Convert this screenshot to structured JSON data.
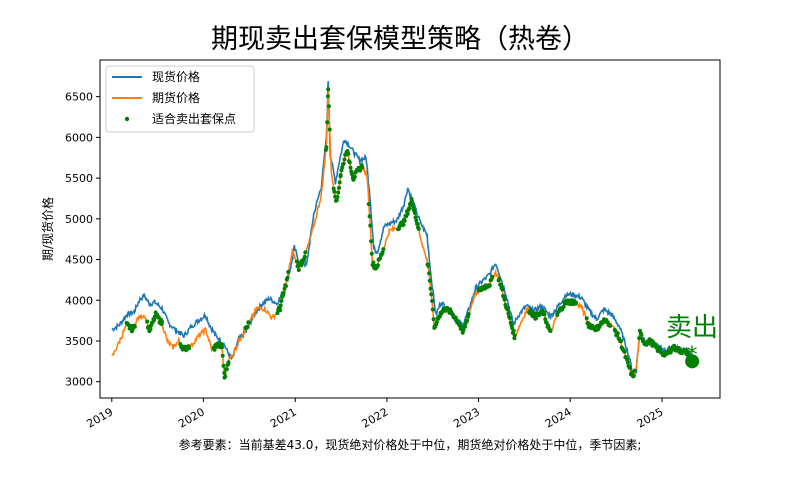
{
  "chart_data": {
    "type": "line",
    "title": "期现卖出套保模型策略（热卷）",
    "ylabel": "期/现货价格",
    "xlabel": "",
    "ylim": [
      2800,
      6950
    ],
    "xlim": [
      "2018-11-15",
      "2025-08-20"
    ],
    "yticks": [
      3000,
      3500,
      4000,
      4500,
      5000,
      5500,
      6000,
      6500
    ],
    "xticks": [
      "2019",
      "2020",
      "2021",
      "2022",
      "2023",
      "2024",
      "2025"
    ],
    "grid": false,
    "legend_position": "top-left",
    "series": [
      {
        "name": "现货价格",
        "color": "#1f77b4",
        "points": [
          [
            "2019-01-02",
            3640
          ],
          [
            "2019-02-01",
            3700
          ],
          [
            "2019-03-01",
            3820
          ],
          [
            "2019-04-01",
            3860
          ],
          [
            "2019-04-20",
            4000
          ],
          [
            "2019-05-10",
            4060
          ],
          [
            "2019-06-01",
            3950
          ],
          [
            "2019-06-20",
            3980
          ],
          [
            "2019-07-20",
            3900
          ],
          [
            "2019-08-15",
            3720
          ],
          [
            "2019-09-15",
            3630
          ],
          [
            "2019-10-15",
            3560
          ],
          [
            "2019-11-15",
            3680
          ],
          [
            "2019-12-15",
            3760
          ],
          [
            "2020-01-10",
            3820
          ],
          [
            "2020-01-25",
            3700
          ],
          [
            "2020-02-20",
            3560
          ],
          [
            "2020-03-20",
            3480
          ],
          [
            "2020-04-10",
            3340
          ],
          [
            "2020-04-25",
            3270
          ],
          [
            "2020-05-20",
            3520
          ],
          [
            "2020-06-20",
            3620
          ],
          [
            "2020-07-20",
            3820
          ],
          [
            "2020-08-20",
            3950
          ],
          [
            "2020-09-20",
            4020
          ],
          [
            "2020-10-20",
            3960
          ],
          [
            "2020-11-20",
            4140
          ],
          [
            "2020-12-15",
            4420
          ],
          [
            "2020-12-28",
            4650
          ],
          [
            "2021-01-15",
            4480
          ],
          [
            "2021-02-15",
            4430
          ],
          [
            "2021-03-15",
            5050
          ],
          [
            "2021-04-15",
            5400
          ],
          [
            "2021-05-05",
            6000
          ],
          [
            "2021-05-12",
            6700
          ],
          [
            "2021-05-20",
            5800
          ],
          [
            "2021-06-10",
            5450
          ],
          [
            "2021-06-25",
            5700
          ],
          [
            "2021-07-15",
            5980
          ],
          [
            "2021-08-05",
            5900
          ],
          [
            "2021-08-25",
            5800
          ],
          [
            "2021-09-15",
            5720
          ],
          [
            "2021-10-10",
            5750
          ],
          [
            "2021-10-25",
            5300
          ],
          [
            "2021-11-10",
            4620
          ],
          [
            "2021-11-25",
            4600
          ],
          [
            "2021-12-20",
            4900
          ],
          [
            "2022-01-15",
            4950
          ],
          [
            "2022-02-10",
            4980
          ],
          [
            "2022-03-10",
            5180
          ],
          [
            "2022-03-25",
            5380
          ],
          [
            "2022-04-15",
            5200
          ],
          [
            "2022-05-15",
            4950
          ],
          [
            "2022-06-10",
            4800
          ],
          [
            "2022-06-25",
            4320
          ],
          [
            "2022-07-15",
            3820
          ],
          [
            "2022-08-05",
            3980
          ],
          [
            "2022-09-10",
            3850
          ],
          [
            "2022-10-10",
            3730
          ],
          [
            "2022-11-01",
            3700
          ],
          [
            "2022-11-25",
            3900
          ],
          [
            "2022-12-20",
            4150
          ],
          [
            "2023-01-15",
            4230
          ],
          [
            "2023-02-15",
            4320
          ],
          [
            "2023-03-10",
            4460
          ],
          [
            "2023-03-25",
            4330
          ],
          [
            "2023-04-20",
            4080
          ],
          [
            "2023-05-20",
            3700
          ],
          [
            "2023-06-10",
            3820
          ],
          [
            "2023-07-10",
            3930
          ],
          [
            "2023-08-10",
            3870
          ],
          [
            "2023-09-10",
            3930
          ],
          [
            "2023-10-15",
            3800
          ],
          [
            "2023-11-15",
            3930
          ],
          [
            "2023-12-15",
            4070
          ],
          [
            "2024-01-15",
            4070
          ],
          [
            "2024-02-15",
            4030
          ],
          [
            "2024-03-15",
            3880
          ],
          [
            "2024-04-15",
            3770
          ],
          [
            "2024-05-15",
            3890
          ],
          [
            "2024-06-15",
            3820
          ],
          [
            "2024-07-15",
            3680
          ],
          [
            "2024-08-15",
            3400
          ],
          [
            "2024-09-10",
            3070
          ],
          [
            "2024-09-20",
            3150
          ],
          [
            "2024-10-05",
            3620
          ],
          [
            "2024-10-20",
            3520
          ],
          [
            "2024-11-15",
            3470
          ],
          [
            "2024-12-15",
            3430
          ],
          [
            "2025-01-15",
            3390
          ],
          [
            "2025-02-15",
            3420
          ],
          [
            "2025-03-15",
            3400
          ],
          [
            "2025-04-10",
            3380
          ],
          [
            "2025-04-25",
            3330
          ]
        ]
      },
      {
        "name": "期货价格",
        "color": "#ff7f0e",
        "points": [
          [
            "2019-01-02",
            3300
          ],
          [
            "2019-01-20",
            3420
          ],
          [
            "2019-02-10",
            3560
          ],
          [
            "2019-03-01",
            3700
          ],
          [
            "2019-03-25",
            3640
          ],
          [
            "2019-04-15",
            3780
          ],
          [
            "2019-05-10",
            3820
          ],
          [
            "2019-06-01",
            3630
          ],
          [
            "2019-06-25",
            3820
          ],
          [
            "2019-07-20",
            3720
          ],
          [
            "2019-08-10",
            3500
          ],
          [
            "2019-09-01",
            3420
          ],
          [
            "2019-09-25",
            3500
          ],
          [
            "2019-10-15",
            3400
          ],
          [
            "2019-11-15",
            3450
          ],
          [
            "2019-12-15",
            3570
          ],
          [
            "2020-01-10",
            3640
          ],
          [
            "2020-02-05",
            3380
          ],
          [
            "2020-02-25",
            3460
          ],
          [
            "2020-03-15",
            3430
          ],
          [
            "2020-03-25",
            3050
          ],
          [
            "2020-04-10",
            3260
          ],
          [
            "2020-05-01",
            3360
          ],
          [
            "2020-06-01",
            3560
          ],
          [
            "2020-07-01",
            3720
          ],
          [
            "2020-08-01",
            3900
          ],
          [
            "2020-09-01",
            3900
          ],
          [
            "2020-10-01",
            3780
          ],
          [
            "2020-11-01",
            3900
          ],
          [
            "2020-12-01",
            4280
          ],
          [
            "2020-12-20",
            4600
          ],
          [
            "2021-01-15",
            4400
          ],
          [
            "2021-02-10",
            4560
          ],
          [
            "2021-03-15",
            4900
          ],
          [
            "2021-04-15",
            5300
          ],
          [
            "2021-05-05",
            5900
          ],
          [
            "2021-05-12",
            6600
          ],
          [
            "2021-05-25",
            5550
          ],
          [
            "2021-06-15",
            5200
          ],
          [
            "2021-07-01",
            5550
          ],
          [
            "2021-07-25",
            5850
          ],
          [
            "2021-08-20",
            5500
          ],
          [
            "2021-09-10",
            5600
          ],
          [
            "2021-09-25",
            5650
          ],
          [
            "2021-10-15",
            5500
          ],
          [
            "2021-11-05",
            4450
          ],
          [
            "2021-11-20",
            4400
          ],
          [
            "2021-12-15",
            4600
          ],
          [
            "2022-01-10",
            4850
          ],
          [
            "2022-02-15",
            4900
          ],
          [
            "2022-03-10",
            4960
          ],
          [
            "2022-04-10",
            5230
          ],
          [
            "2022-05-05",
            4900
          ],
          [
            "2022-05-25",
            4650
          ],
          [
            "2022-06-15",
            4430
          ],
          [
            "2022-07-10",
            3650
          ],
          [
            "2022-07-25",
            3800
          ],
          [
            "2022-08-20",
            3900
          ],
          [
            "2022-09-15",
            3850
          ],
          [
            "2022-10-10",
            3750
          ],
          [
            "2022-10-30",
            3600
          ],
          [
            "2022-11-20",
            3800
          ],
          [
            "2022-12-15",
            4050
          ],
          [
            "2023-01-15",
            4150
          ],
          [
            "2023-02-15",
            4200
          ],
          [
            "2023-03-10",
            4350
          ],
          [
            "2023-03-25",
            4250
          ],
          [
            "2023-04-15",
            4000
          ],
          [
            "2023-05-25",
            3550
          ],
          [
            "2023-06-15",
            3700
          ],
          [
            "2023-07-15",
            3900
          ],
          [
            "2023-08-15",
            3800
          ],
          [
            "2023-09-15",
            3850
          ],
          [
            "2023-10-15",
            3600
          ],
          [
            "2023-11-15",
            3850
          ],
          [
            "2023-12-15",
            3980
          ],
          [
            "2024-01-15",
            3980
          ],
          [
            "2024-02-15",
            3920
          ],
          [
            "2024-03-15",
            3700
          ],
          [
            "2024-04-15",
            3650
          ],
          [
            "2024-05-15",
            3750
          ],
          [
            "2024-06-15",
            3700
          ],
          [
            "2024-07-15",
            3530
          ],
          [
            "2024-08-15",
            3250
          ],
          [
            "2024-09-05",
            3060
          ],
          [
            "2024-09-20",
            3150
          ],
          [
            "2024-10-05",
            3600
          ],
          [
            "2024-10-25",
            3470
          ],
          [
            "2024-11-15",
            3500
          ],
          [
            "2024-12-15",
            3400
          ],
          [
            "2025-01-15",
            3330
          ],
          [
            "2025-02-15",
            3420
          ],
          [
            "2025-03-15",
            3380
          ],
          [
            "2025-04-10",
            3360
          ],
          [
            "2025-04-25",
            3290
          ]
        ]
      }
    ],
    "hedge_points": {
      "name": "适合卖出套保点",
      "color": "#008000",
      "segments": [
        [
          "2019-03-01",
          "2019-04-05"
        ],
        [
          "2019-05-20",
          "2019-07-20"
        ],
        [
          "2019-10-01",
          "2019-11-05"
        ],
        [
          "2020-02-10",
          "2020-04-10"
        ],
        [
          "2020-06-15",
          "2020-06-30"
        ],
        [
          "2020-10-20",
          "2020-12-05"
        ],
        [
          "2021-01-05",
          "2021-02-10"
        ],
        [
          "2021-05-01",
          "2021-05-20"
        ],
        [
          "2021-06-01",
          "2021-09-25"
        ],
        [
          "2021-10-20",
          "2021-12-20"
        ],
        [
          "2022-02-15",
          "2022-05-10"
        ],
        [
          "2022-06-10",
          "2022-11-25"
        ],
        [
          "2023-01-01",
          "2023-02-25"
        ],
        [
          "2023-03-20",
          "2023-05-25"
        ],
        [
          "2023-07-20",
          "2023-10-15"
        ],
        [
          "2023-11-10",
          "2024-01-25"
        ],
        [
          "2024-03-05",
          "2024-06-10"
        ],
        [
          "2024-06-25",
          "2024-09-15"
        ],
        [
          "2024-10-01",
          "2025-04-25"
        ]
      ]
    },
    "annotations": {
      "sell_label": "卖出",
      "star": "*",
      "marker_date": "2025-05-01",
      "marker_value": 3250,
      "color": "#008000"
    },
    "footnote": "参考要素：当前基差43.0，现货绝对价格处于中位，期货绝对价格处于中位，季节因素;"
  }
}
